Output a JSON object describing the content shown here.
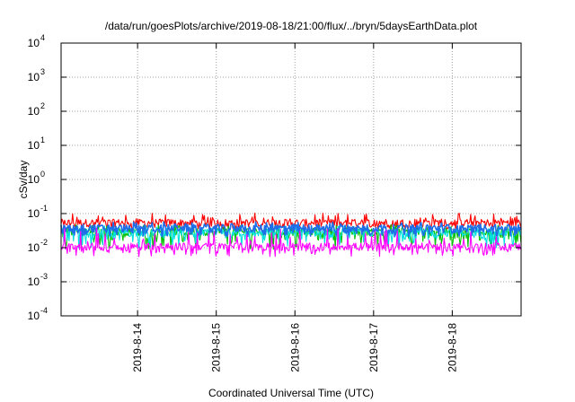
{
  "chart_data": {
    "type": "line",
    "title": "/data/run/goesPlots/archive/2019-08-18/21:00/flux/../bryn/5daysEarthData.plot",
    "xlabel": "Coordinated Universal Time (UTC)",
    "ylabel": "cSv/day",
    "y_scale": "log",
    "ylim": [
      0.0001,
      10000
    ],
    "xlim": [
      "2019-08-13T00:40",
      "2019-08-18T21:00"
    ],
    "x_ticks": [
      "2019-8-14",
      "2019-8-15",
      "2019-8-16",
      "2019-8-17",
      "2019-8-18"
    ],
    "y_ticks": [
      {
        "value": 0.0001,
        "base": "10",
        "exp": "-4"
      },
      {
        "value": 0.001,
        "base": "10",
        "exp": "-3"
      },
      {
        "value": 0.01,
        "base": "10",
        "exp": "-2"
      },
      {
        "value": 0.1,
        "base": "10",
        "exp": "-1"
      },
      {
        "value": 1,
        "base": "10",
        "exp": "0"
      },
      {
        "value": 10,
        "base": "10",
        "exp": "1"
      },
      {
        "value": 100,
        "base": "10",
        "exp": "2"
      },
      {
        "value": 1000,
        "base": "10",
        "exp": "3"
      },
      {
        "value": 10000,
        "base": "10",
        "exp": "4"
      }
    ],
    "grid": true,
    "series": [
      {
        "color": "#ff0000",
        "base": 0.055,
        "spread_lo": 0.62,
        "spread_hi": 1.9
      },
      {
        "color": "#00c000",
        "base": 0.03,
        "spread_lo": 0.3,
        "spread_hi": 1.6
      },
      {
        "color": "#00e0e0",
        "base": 0.028,
        "spread_lo": 0.35,
        "spread_hi": 1.6
      },
      {
        "color": "#1e6ee8",
        "base": 0.038,
        "spread_lo": 0.55,
        "spread_hi": 1.5
      },
      {
        "color": "#ff00ff",
        "base": 0.011,
        "spread_lo": 0.5,
        "spread_hi": 3.4
      }
    ]
  }
}
